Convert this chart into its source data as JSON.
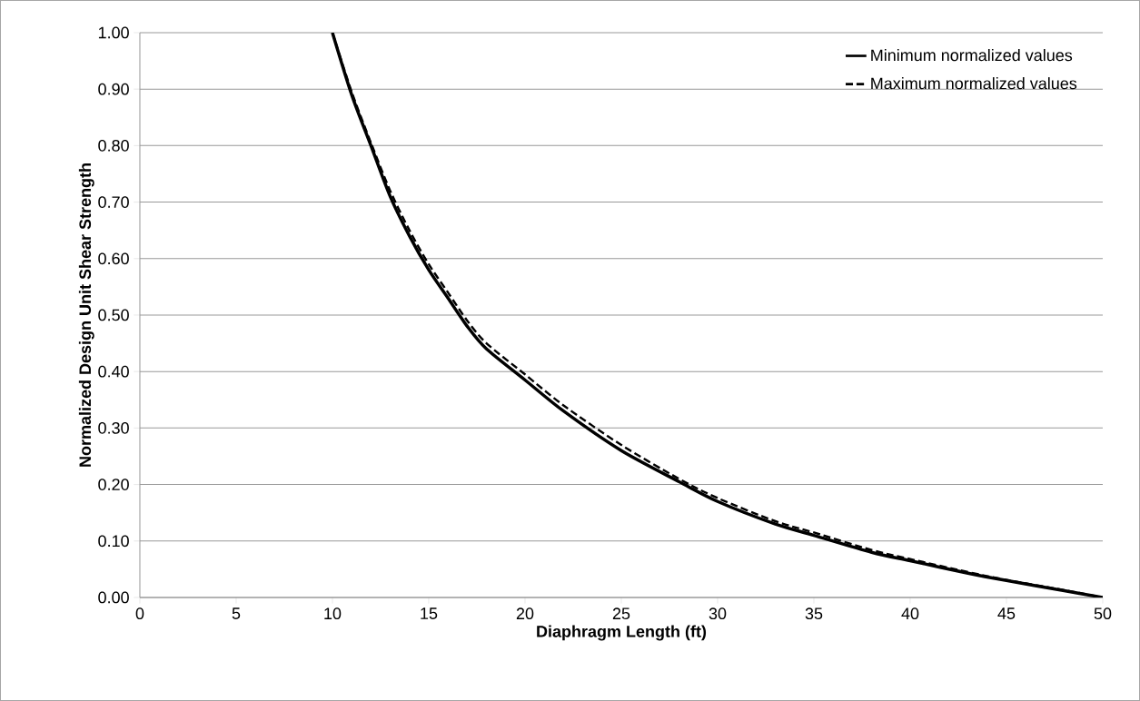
{
  "chart_data": {
    "type": "line",
    "xlabel": "Diaphragm Length (ft)",
    "ylabel": "Normalized Design Unit Shear Strength",
    "xlim": [
      0,
      50
    ],
    "ylim": [
      0,
      1
    ],
    "xticks": [
      0,
      5,
      10,
      15,
      20,
      25,
      30,
      35,
      40,
      45,
      50
    ],
    "yticks": [
      {
        "value": 0,
        "label": "0.00"
      },
      {
        "value": 0.1,
        "label": "0.10"
      },
      {
        "value": 0.2,
        "label": "0.20"
      },
      {
        "value": 0.3,
        "label": "0.30"
      },
      {
        "value": 0.4,
        "label": "0.40"
      },
      {
        "value": 0.5,
        "label": "0.50"
      },
      {
        "value": 0.6,
        "label": "0.60"
      },
      {
        "value": 0.7,
        "label": "0.70"
      },
      {
        "value": 0.8,
        "label": "0.80"
      },
      {
        "value": 0.9,
        "label": "0.90"
      },
      {
        "value": 1,
        "label": "1.00"
      }
    ],
    "grid": "y",
    "legend": "top right",
    "marker": "none",
    "x": [
      10,
      11,
      12,
      13,
      14,
      15,
      16,
      17,
      18,
      20,
      22,
      25,
      28,
      30,
      33,
      35,
      38,
      40,
      43,
      45,
      48,
      50
    ],
    "series": [
      {
        "name": "Minimum normalized values",
        "color": "#000000",
        "line_style": "solid",
        "values": [
          1.0,
          0.89,
          0.8,
          0.71,
          0.64,
          0.58,
          0.53,
          0.48,
          0.44,
          0.385,
          0.33,
          0.26,
          0.205,
          0.17,
          0.13,
          0.11,
          0.08,
          0.065,
          0.043,
          0.03,
          0.012,
          0.0
        ]
      },
      {
        "name": "Maximum normalized values",
        "color": "#000000",
        "line_style": "dashed",
        "values": [
          1.0,
          0.895,
          0.805,
          0.72,
          0.65,
          0.59,
          0.54,
          0.49,
          0.45,
          0.395,
          0.34,
          0.27,
          0.21,
          0.176,
          0.135,
          0.115,
          0.084,
          0.068,
          0.045,
          0.031,
          0.013,
          0.0
        ]
      }
    ]
  }
}
